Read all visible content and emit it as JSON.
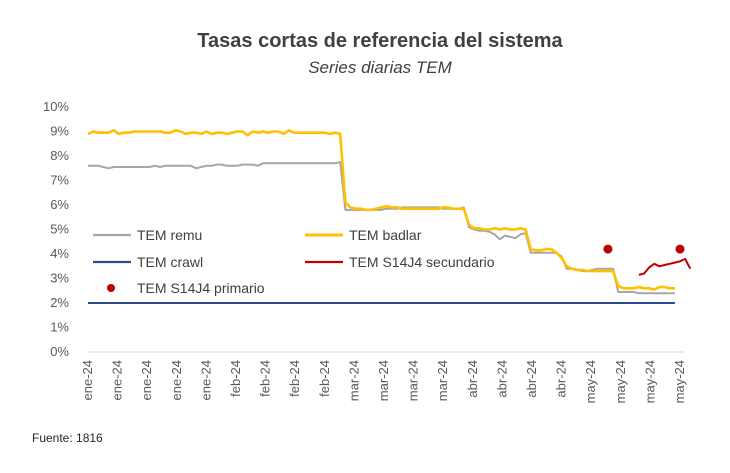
{
  "chart_data": {
    "type": "line",
    "title": "Tasas cortas de referencia del sistema",
    "subtitle": "Series diarias TEM",
    "source": "Fuente: 1816",
    "ylim": [
      0,
      10
    ],
    "yticks": [
      "0%",
      "1%",
      "2%",
      "3%",
      "4%",
      "5%",
      "6%",
      "7%",
      "8%",
      "9%",
      "10%"
    ],
    "x_tick_labels": [
      "ene-24",
      "ene-24",
      "ene-24",
      "ene-24",
      "ene-24",
      "feb-24",
      "feb-24",
      "feb-24",
      "feb-24",
      "mar-24",
      "mar-24",
      "mar-24",
      "mar-24",
      "abr-24",
      "abr-24",
      "abr-24",
      "abr-24",
      "may-24",
      "may-24",
      "may-24",
      "may-24"
    ],
    "grid": false,
    "legend_placement": "inside-middle",
    "series": [
      {
        "name": "TEM remu",
        "color": "#a6a6a6",
        "style": "line",
        "values": [
          7.6,
          7.6,
          7.6,
          7.55,
          7.5,
          7.55,
          7.55,
          7.55,
          7.55,
          7.55,
          7.55,
          7.55,
          7.55,
          7.6,
          7.55,
          7.6,
          7.6,
          7.6,
          7.6,
          7.6,
          7.6,
          7.5,
          7.55,
          7.6,
          7.6,
          7.65,
          7.65,
          7.6,
          7.6,
          7.6,
          7.65,
          7.65,
          7.65,
          7.6,
          7.7,
          7.7,
          7.7,
          7.7,
          7.7,
          7.7,
          7.7,
          7.7,
          7.7,
          7.7,
          7.7,
          7.7,
          7.7,
          7.7,
          7.7,
          7.75,
          5.8,
          5.8,
          5.8,
          5.8,
          5.8,
          5.8,
          5.8,
          5.8,
          5.85,
          5.85,
          5.85,
          5.9,
          5.9,
          5.9,
          5.9,
          5.9,
          5.9,
          5.9,
          5.9,
          5.85,
          5.85,
          5.85,
          5.85,
          5.9,
          5.1,
          5.0,
          4.95,
          4.95,
          4.9,
          4.8,
          4.6,
          4.75,
          4.7,
          4.65,
          4.8,
          4.85,
          4.05,
          4.05,
          4.05,
          4.05,
          4.05,
          4.05,
          3.9,
          3.4,
          3.4,
          3.35,
          3.3,
          3.3,
          3.35,
          3.4,
          3.4,
          3.4,
          3.4,
          2.45,
          2.45,
          2.45,
          2.45,
          2.4,
          2.4,
          2.4,
          2.4,
          2.4,
          2.4,
          2.4,
          2.4
        ]
      },
      {
        "name": "TEM badlar",
        "color": "#ffc000",
        "style": "line",
        "values": [
          8.9,
          9.0,
          8.95,
          8.95,
          8.95,
          9.05,
          8.9,
          8.95,
          8.95,
          9.0,
          9.0,
          9.0,
          9.0,
          9.0,
          9.0,
          8.95,
          8.95,
          9.05,
          9.0,
          8.9,
          8.95,
          8.95,
          8.9,
          9.0,
          8.9,
          8.95,
          8.95,
          8.9,
          8.95,
          9.0,
          9.0,
          8.85,
          9.0,
          8.95,
          9.0,
          8.95,
          9.0,
          9.0,
          8.9,
          9.05,
          8.95,
          8.95,
          8.95,
          8.95,
          8.95,
          8.95,
          8.95,
          8.9,
          8.95,
          8.9,
          6.1,
          5.9,
          5.85,
          5.85,
          5.8,
          5.8,
          5.85,
          5.9,
          5.95,
          5.9,
          5.9,
          5.85,
          5.85,
          5.85,
          5.85,
          5.85,
          5.85,
          5.85,
          5.85,
          5.9,
          5.9,
          5.85,
          5.85,
          5.85,
          5.2,
          5.05,
          5.05,
          5.0,
          5.0,
          5.05,
          5.0,
          5.05,
          5.0,
          5.0,
          5.05,
          5.0,
          4.2,
          4.15,
          4.15,
          4.2,
          4.2,
          4.05,
          3.85,
          3.5,
          3.4,
          3.35,
          3.35,
          3.3,
          3.3,
          3.3,
          3.3,
          3.3,
          3.3,
          2.7,
          2.6,
          2.6,
          2.6,
          2.65,
          2.6,
          2.6,
          2.55,
          2.65,
          2.65,
          2.6,
          2.6
        ]
      },
      {
        "name": "TEM crawl",
        "color": "#2e4a8e",
        "style": "line",
        "values": [
          2.0,
          2.0,
          2.0,
          2.0,
          2.0,
          2.0,
          2.0,
          2.0,
          2.0,
          2.0,
          2.0,
          2.0,
          2.0,
          2.0,
          2.0,
          2.0,
          2.0,
          2.0,
          2.0,
          2.0,
          2.0,
          2.0,
          2.0,
          2.0,
          2.0,
          2.0,
          2.0,
          2.0,
          2.0,
          2.0,
          2.0,
          2.0,
          2.0,
          2.0,
          2.0,
          2.0,
          2.0,
          2.0,
          2.0,
          2.0,
          2.0,
          2.0,
          2.0,
          2.0,
          2.0,
          2.0,
          2.0,
          2.0,
          2.0,
          2.0,
          2.0,
          2.0,
          2.0,
          2.0,
          2.0,
          2.0,
          2.0,
          2.0,
          2.0,
          2.0,
          2.0,
          2.0,
          2.0,
          2.0,
          2.0,
          2.0,
          2.0,
          2.0,
          2.0,
          2.0,
          2.0,
          2.0,
          2.0,
          2.0,
          2.0,
          2.0,
          2.0,
          2.0,
          2.0,
          2.0,
          2.0,
          2.0,
          2.0,
          2.0,
          2.0,
          2.0,
          2.0,
          2.0,
          2.0,
          2.0,
          2.0,
          2.0,
          2.0,
          2.0,
          2.0,
          2.0,
          2.0,
          2.0,
          2.0,
          2.0,
          2.0,
          2.0,
          2.0,
          2.0,
          2.0,
          2.0,
          2.0,
          2.0,
          2.0,
          2.0,
          2.0,
          2.0,
          2.0,
          2.0,
          2.0
        ]
      },
      {
        "name": "TEM S14J4 secundario",
        "color": "#c00000",
        "style": "line",
        "start_index": 107,
        "values": [
          3.15,
          3.2,
          3.45,
          3.6,
          3.5,
          3.55,
          3.6,
          3.65,
          3.7,
          3.8,
          3.4
        ]
      },
      {
        "name": "TEM S14J4 primario",
        "color": "#c00000",
        "style": "marker",
        "points": [
          {
            "index": 101,
            "value": 4.2
          },
          {
            "index": 115,
            "value": 4.2
          }
        ]
      }
    ]
  }
}
